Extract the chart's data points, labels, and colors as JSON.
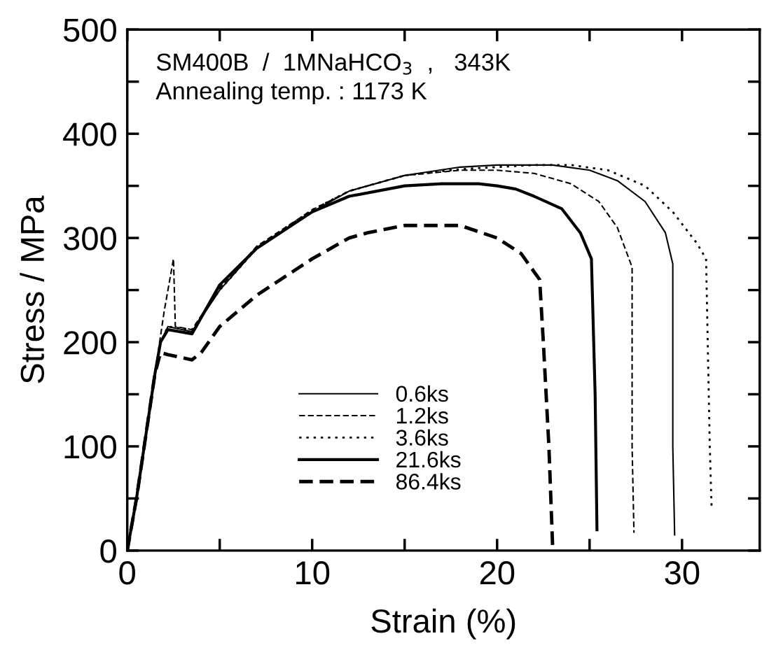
{
  "chart_data": {
    "type": "line",
    "xlabel": "Strain (%)",
    "ylabel": "Stress / MPa",
    "annotations": [
      "SM400B  /  1MNaHCO$_{3}$  ,   343K",
      "Annealing temp. : 1173 K"
    ],
    "xlim": [
      0,
      34.2
    ],
    "ylim": [
      0,
      500
    ],
    "xticks": [
      0,
      10,
      20,
      30
    ],
    "yticks": [
      0,
      100,
      200,
      300,
      400,
      500
    ],
    "grid": false,
    "legend": "bottom",
    "marker": "none",
    "series": [
      {
        "name": "0.6ks",
        "color": "#000000",
        "line_style": "solid",
        "x": [
          0,
          0.5,
          1,
          1.5,
          1.8,
          2.2,
          3.5,
          5,
          7,
          10,
          12,
          15,
          18,
          20,
          23,
          25,
          26.5,
          28,
          29.1,
          29.5,
          29.5,
          29.6
        ],
        "values": [
          0,
          50,
          110,
          170,
          200,
          215,
          210,
          250,
          290,
          325,
          345,
          360,
          368,
          370,
          370,
          365,
          355,
          335,
          305,
          275,
          100,
          15
        ]
      },
      {
        "name": "1.2ks",
        "color": "#000000",
        "line_style": "dashed",
        "x": [
          0,
          0.5,
          1,
          1.5,
          2,
          2.5,
          2.6,
          3.5,
          5,
          7,
          10,
          12,
          15,
          18,
          20,
          22,
          24,
          25.5,
          26.5,
          27.3,
          27.3,
          27.4
        ],
        "values": [
          0,
          50,
          110,
          170,
          230,
          280,
          215,
          212,
          252,
          292,
          327,
          345,
          360,
          365,
          365,
          362,
          352,
          335,
          310,
          272,
          100,
          17
        ]
      },
      {
        "name": "3.6ks",
        "color": "#000000",
        "line_style": "dotted",
        "x": [
          0,
          0.5,
          1,
          1.5,
          1.8,
          2.2,
          3.5,
          5,
          7,
          10,
          12,
          15,
          18,
          20,
          22,
          24,
          26,
          28,
          29.5,
          30.8,
          31.3,
          31.5,
          31.6
        ],
        "values": [
          0,
          50,
          110,
          170,
          200,
          215,
          212,
          250,
          290,
          327,
          345,
          360,
          366,
          368,
          370,
          370,
          365,
          350,
          325,
          295,
          280,
          100,
          40
        ]
      },
      {
        "name": "21.6ks",
        "color": "#000000",
        "line_style": "solid",
        "x": [
          0,
          0.5,
          1,
          1.5,
          1.8,
          2.2,
          3.5,
          5,
          7,
          10,
          12,
          15,
          17,
          19,
          20,
          21,
          22,
          23.5,
          24.5,
          25.1,
          25.3,
          25.4
        ],
        "values": [
          0,
          50,
          110,
          170,
          200,
          212,
          208,
          255,
          290,
          325,
          340,
          350,
          352,
          352,
          350,
          347,
          340,
          328,
          305,
          280,
          150,
          20
        ]
      },
      {
        "name": "86.4ks",
        "color": "#000000",
        "line_style": "dashed",
        "x": [
          0,
          0.5,
          1,
          1.5,
          1.8,
          2.2,
          3.5,
          4,
          5,
          7,
          10,
          12,
          13,
          15,
          18,
          20,
          21.3,
          22.3,
          22.5,
          22.8,
          23
        ],
        "values": [
          0,
          50,
          110,
          170,
          190,
          188,
          183,
          190,
          215,
          245,
          280,
          300,
          305,
          312,
          312,
          300,
          285,
          260,
          200,
          100,
          5
        ]
      }
    ]
  }
}
